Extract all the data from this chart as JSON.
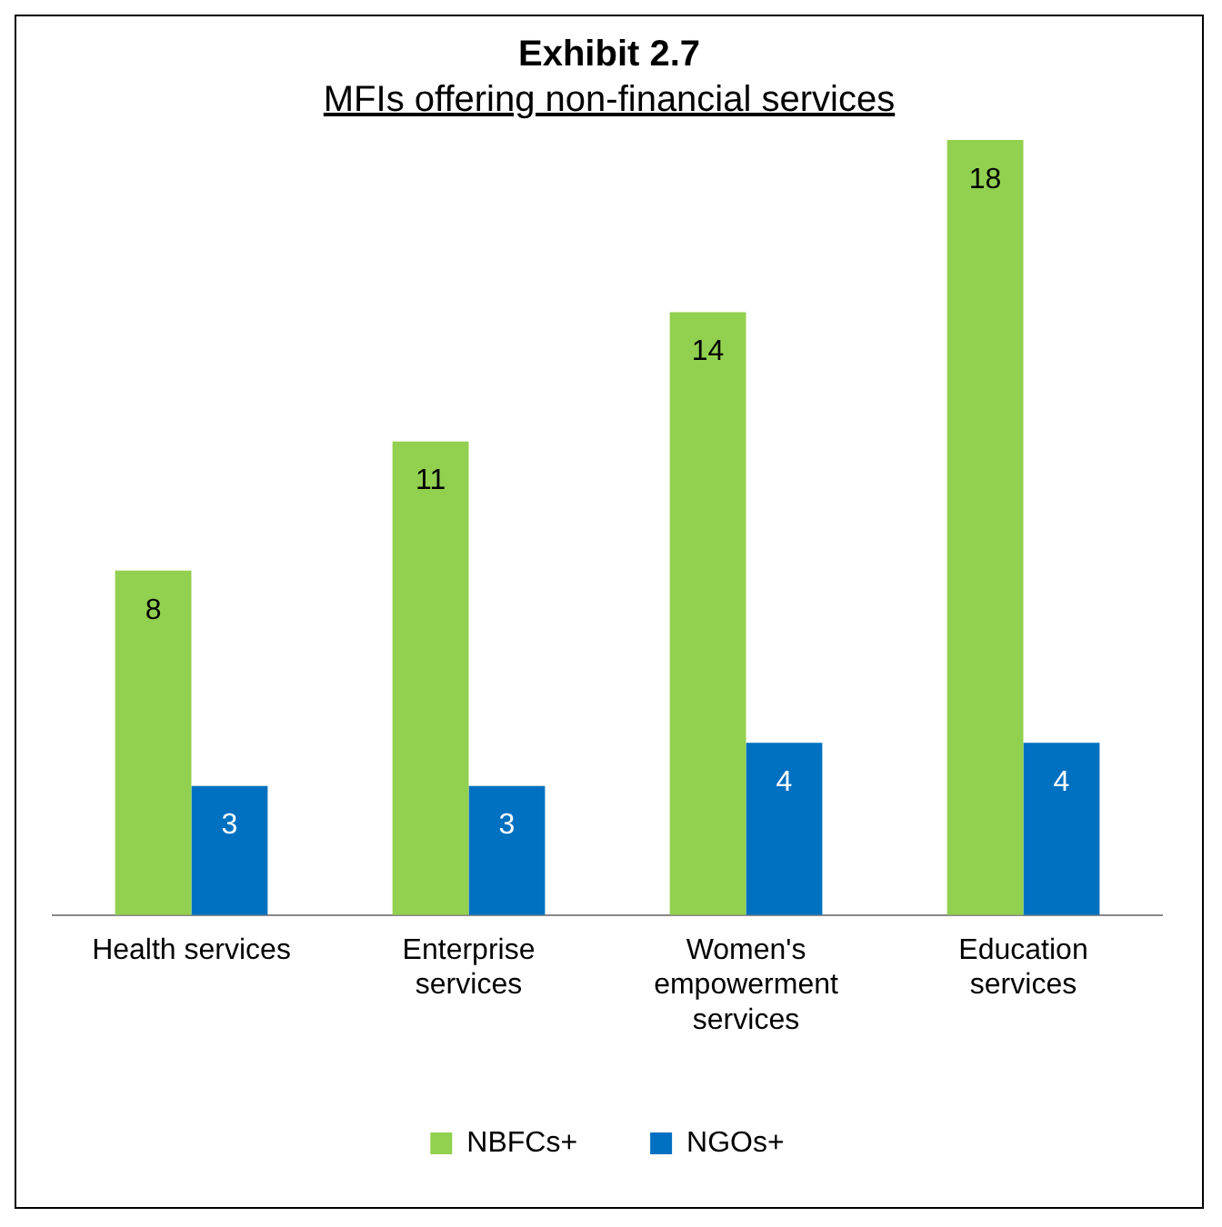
{
  "chart_data": {
    "type": "bar",
    "title": "Exhibit 2.7",
    "subtitle": "MFIs offering non-financial services",
    "categories": [
      "Health services",
      "Enterprise services",
      "Women's empowerment services",
      "Education services"
    ],
    "series": [
      {
        "name": "NBFCs+",
        "color": "#92d050",
        "values": [
          8,
          11,
          14,
          18
        ]
      },
      {
        "name": "NGOs+",
        "color": "#0070c0",
        "values": [
          3,
          3,
          4,
          4
        ]
      }
    ],
    "data_labels": true,
    "legend": "bottom",
    "grid": false
  }
}
